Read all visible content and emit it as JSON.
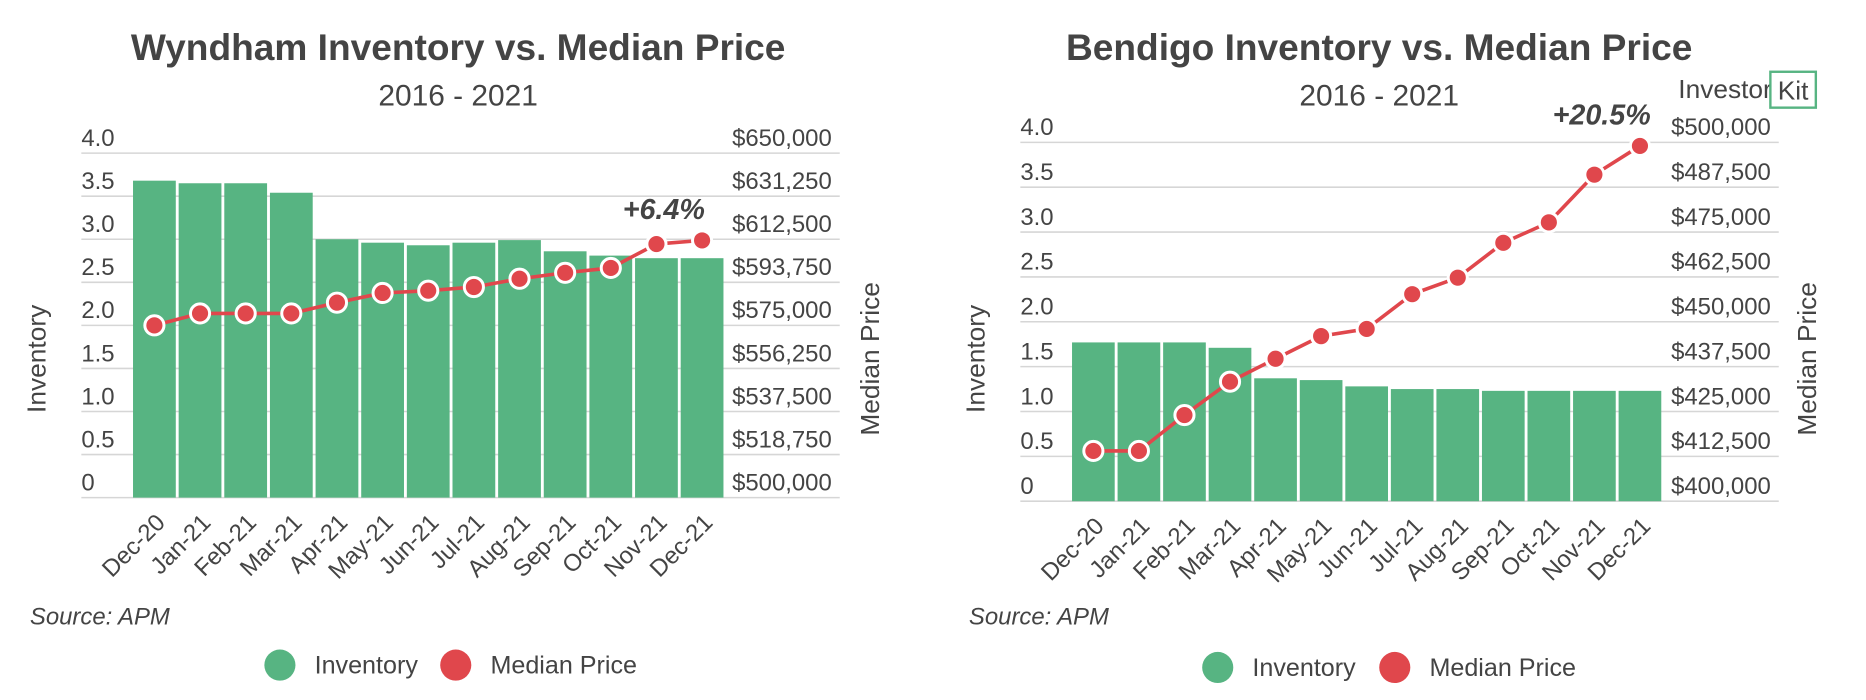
{
  "chart_data": [
    {
      "type": "combo",
      "title": "Wyndham Inventory vs. Median Price",
      "subtitle": "2016 - 2021",
      "categories": [
        "Dec-20",
        "Jan-21",
        "Feb-21",
        "Mar-21",
        "Apr-21",
        "May-21",
        "Jun-21",
        "Jul-21",
        "Aug-21",
        "Sep-21",
        "Oct-21",
        "Nov-21",
        "Dec-21"
      ],
      "series": [
        {
          "name": "Inventory",
          "type": "bar",
          "color": "#57b482",
          "values": [
            3.68,
            3.65,
            3.65,
            3.54,
            3.0,
            2.96,
            2.93,
            2.96,
            2.99,
            2.86,
            2.81,
            2.78,
            2.78
          ]
        },
        {
          "name": "Median Price",
          "type": "line",
          "axis": "y2",
          "color": "#e0474c",
          "values": [
            575000,
            580200,
            580200,
            580200,
            584900,
            589100,
            590100,
            591700,
            595300,
            597900,
            600000,
            610400,
            612000
          ]
        }
      ],
      "ylabel": "Inventory",
      "y2label": "Median Price",
      "ylim": [
        0,
        4
      ],
      "yticks": [
        0,
        0.5,
        {
          "value": 1,
          "label": "1.0"
        },
        1.5,
        {
          "value": 2,
          "label": "2.0"
        },
        2.5,
        {
          "value": 3,
          "label": "3.0"
        },
        3.5,
        {
          "value": 4,
          "label": "4.0"
        }
      ],
      "y2lim": [
        500000,
        650000
      ],
      "y2ticks": [
        {
          "value": 500000,
          "label": "$500,000"
        },
        {
          "value": 518750,
          "label": "$518,750"
        },
        {
          "value": 537500,
          "label": "$537,500"
        },
        {
          "value": 556250,
          "label": "$556,250"
        },
        {
          "value": 575000,
          "label": "$575,000"
        },
        {
          "value": 593750,
          "label": "$593,750"
        },
        {
          "value": 612500,
          "label": "$612,500"
        },
        {
          "value": 631250,
          "label": "$631,250"
        },
        {
          "value": 650000,
          "label": "$650,000"
        }
      ],
      "grid": true,
      "annotation": "+6.4%",
      "source": "Source: APM"
    },
    {
      "type": "combo",
      "title": "Bendigo Inventory vs. Median Price",
      "subtitle": "2016 - 2021",
      "categories": [
        "Dec-20",
        "Jan-21",
        "Feb-21",
        "Mar-21",
        "Apr-21",
        "May-21",
        "Jun-21",
        "Jul-21",
        "Aug-21",
        "Sep-21",
        "Oct-21",
        "Nov-21",
        "Dec-21"
      ],
      "series": [
        {
          "name": "Inventory",
          "type": "bar",
          "color": "#57b482",
          "values": [
            1.77,
            1.77,
            1.77,
            1.71,
            1.37,
            1.35,
            1.28,
            1.25,
            1.25,
            1.23,
            1.23,
            1.23,
            1.23
          ]
        },
        {
          "name": "Median Price",
          "type": "line",
          "axis": "y2",
          "color": "#e0474c",
          "values": [
            414000,
            414000,
            424000,
            433300,
            439700,
            446000,
            448000,
            457700,
            462300,
            472000,
            477700,
            491000,
            499000
          ]
        }
      ],
      "ylabel": "Inventory",
      "y2label": "Median Price",
      "ylim": [
        0,
        4
      ],
      "yticks": [
        0,
        0.5,
        {
          "value": 1,
          "label": "1.0"
        },
        1.5,
        {
          "value": 2,
          "label": "2.0"
        },
        2.5,
        {
          "value": 3,
          "label": "3.0"
        },
        3.5,
        {
          "value": 4,
          "label": "4.0"
        }
      ],
      "y2lim": [
        400000,
        500000
      ],
      "y2ticks": [
        {
          "value": 400000,
          "label": "$400,000"
        },
        {
          "value": 412500,
          "label": "$412,500"
        },
        {
          "value": 425000,
          "label": "$425,000"
        },
        {
          "value": 437500,
          "label": "$437,500"
        },
        {
          "value": 450000,
          "label": "$450,000"
        },
        {
          "value": 462500,
          "label": "$462,500"
        },
        {
          "value": 475000,
          "label": "$475,000"
        },
        {
          "value": 487500,
          "label": "$487,500"
        },
        {
          "value": 500000,
          "label": "$500,000"
        }
      ],
      "grid": true,
      "annotation": "+20.5%",
      "source": "Source: APM"
    }
  ],
  "brand": [
    "Investor",
    "Kit"
  ]
}
